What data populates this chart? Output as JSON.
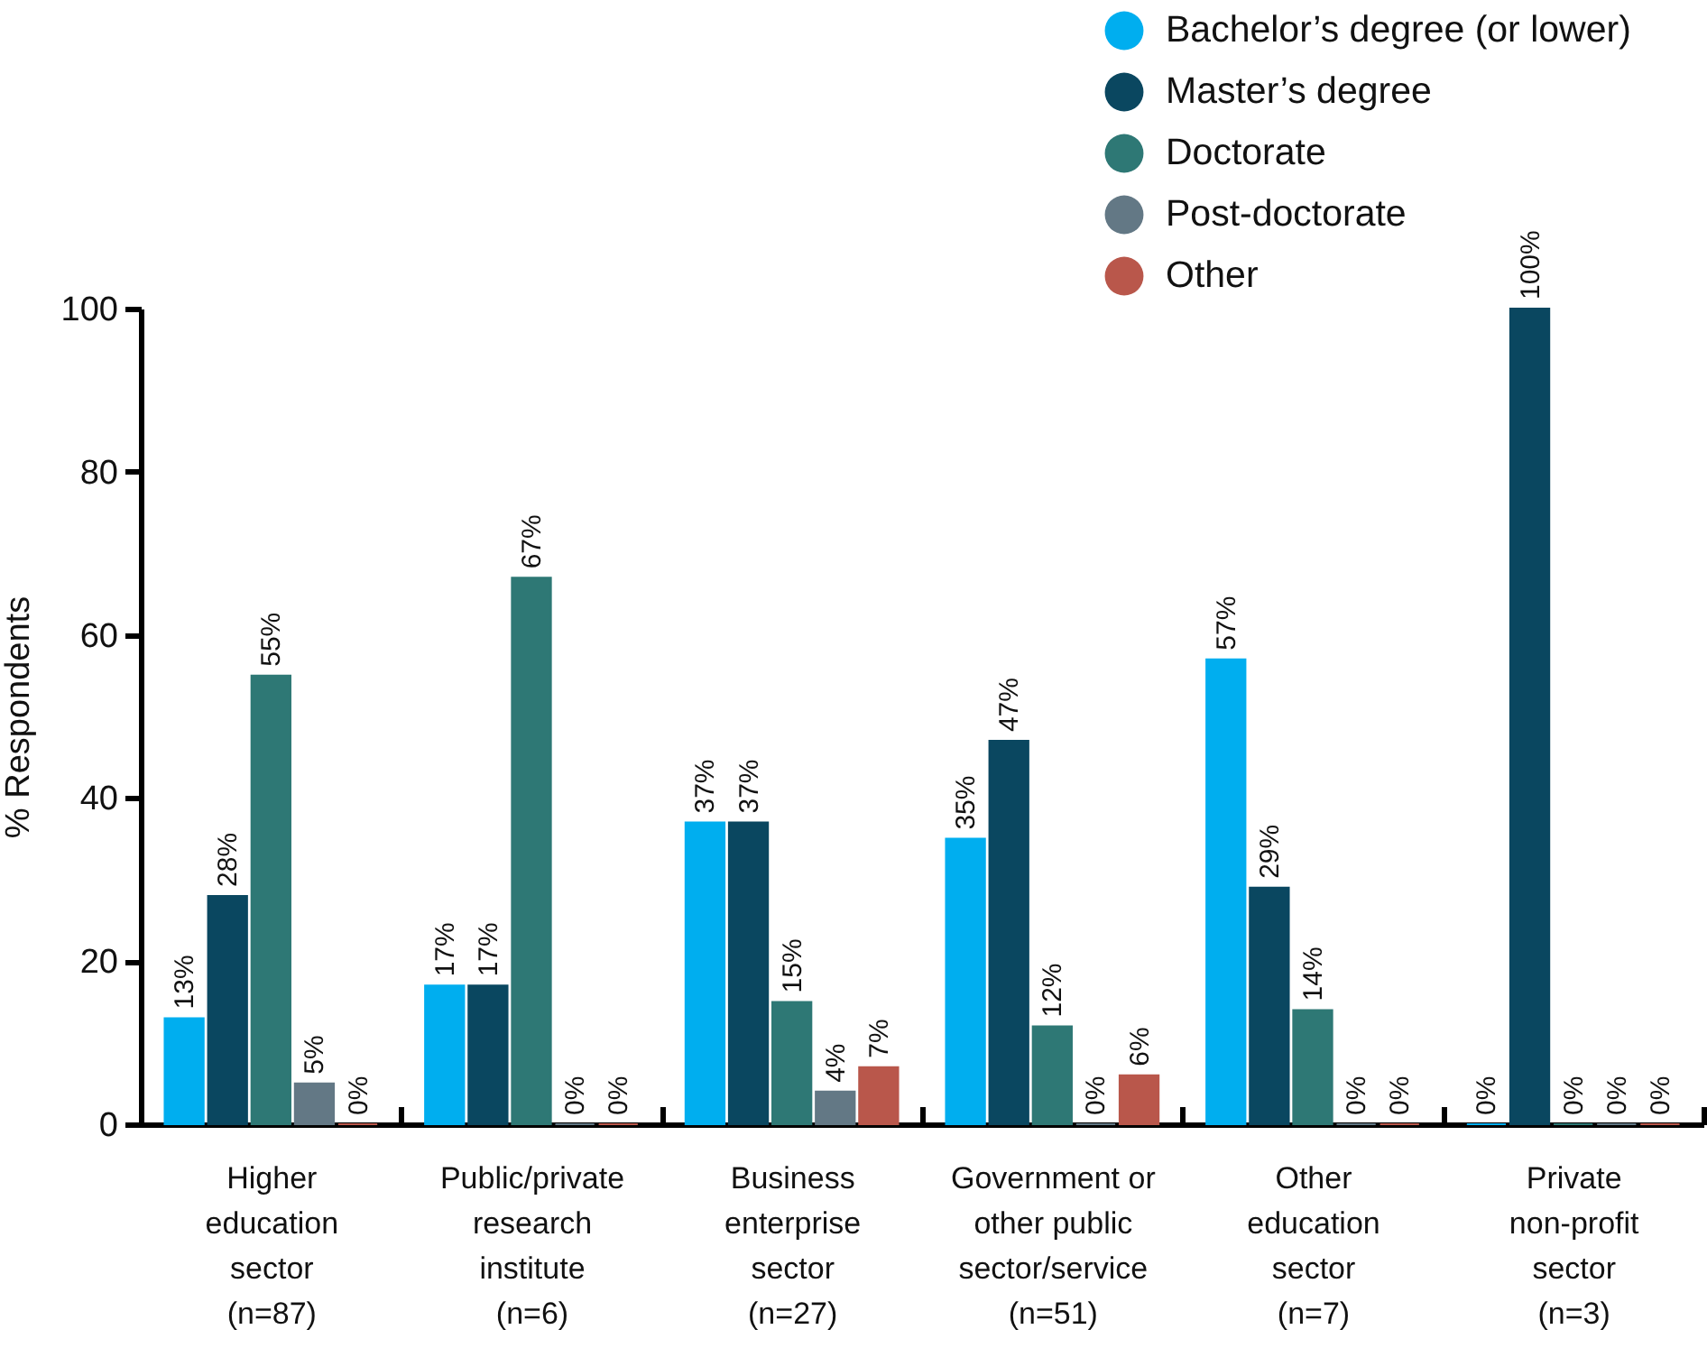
{
  "chart_data": {
    "type": "bar",
    "ylabel": "% Respondents",
    "categories": [
      "Higher education sector (n=87)",
      "Public/private research institute (n=6)",
      "Business enterprise sector (n=27)",
      "Government or other public sector/service (n=51)",
      "Other education sector (n=7)",
      "Private non-profit sector (n=3)"
    ],
    "series": [
      {
        "name": "Bachelor’s degree (or lower)",
        "color": "#00aeef",
        "values": [
          13,
          17,
          37,
          35,
          57,
          0
        ],
        "value_labels": [
          "13%",
          "17%",
          "37%",
          "35%",
          "57%",
          "0%"
        ]
      },
      {
        "name": "Master’s degree",
        "color": "#0a4760",
        "values": [
          28,
          17,
          37,
          47,
          29,
          100
        ],
        "value_labels": [
          "28%",
          "17%",
          "37%",
          "47%",
          "29%",
          "100%"
        ]
      },
      {
        "name": "Doctorate",
        "color": "#2e7875",
        "values": [
          55,
          67,
          15,
          12,
          14,
          0
        ],
        "value_labels": [
          "55%",
          "67%",
          "15%",
          "12%",
          "14%",
          "0%"
        ]
      },
      {
        "name": "Post-doctorate",
        "color": "#637885",
        "values": [
          5,
          0,
          4,
          0,
          0,
          0
        ],
        "value_labels": [
          "5%",
          "0%",
          "4%",
          "0%",
          "0%",
          "0%"
        ]
      },
      {
        "name": "Other",
        "color": "#b9574b",
        "values": [
          0,
          0,
          7,
          6,
          0,
          0
        ],
        "value_labels": [
          "0%",
          "0%",
          "7%",
          "6%",
          "0%",
          "0%"
        ]
      }
    ],
    "ylim": [
      0,
      100
    ],
    "yticks": [
      0,
      20,
      40,
      60,
      80,
      100
    ],
    "legend": "top right"
  }
}
